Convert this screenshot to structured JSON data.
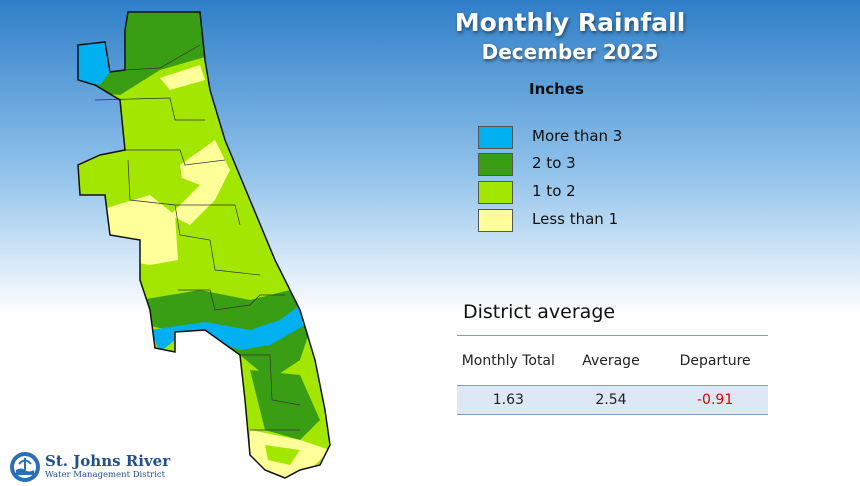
{
  "header": {
    "title": "Monthly Rainfall",
    "subtitle": "December 2025"
  },
  "legend": {
    "title": "Inches",
    "items": [
      {
        "label": "More than 3",
        "color": "#00b0f0"
      },
      {
        "label": "2 to 3",
        "color": "#3a9e14"
      },
      {
        "label": "1 to 2",
        "color": "#a3e600"
      },
      {
        "label": "Less than 1",
        "color": "#ffff99"
      }
    ]
  },
  "table": {
    "title": "District average",
    "columns": [
      "Monthly Total",
      "Average",
      "Departure"
    ],
    "rows": [
      [
        "1.63",
        "2.54",
        "-0.91"
      ]
    ]
  },
  "logo": {
    "name": "St. Johns River",
    "subtitle": "Water Management District"
  }
}
